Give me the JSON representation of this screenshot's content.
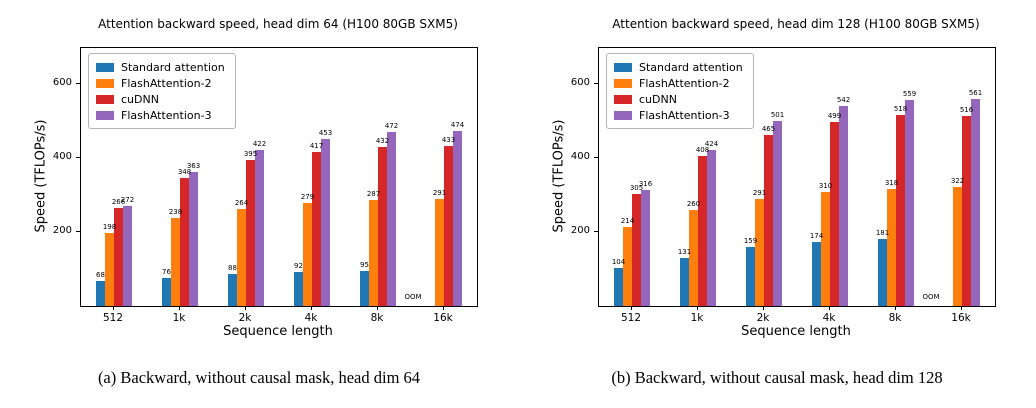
{
  "chart_data": [
    {
      "type": "bar",
      "title": "Attention backward speed, head dim 64 (H100 80GB SXM5)",
      "xlabel": "Sequence length",
      "ylabel": "Speed (TFLOPs/s)",
      "categories": [
        "512",
        "1k",
        "2k",
        "4k",
        "8k",
        "16k"
      ],
      "yticks": [
        200,
        400,
        600
      ],
      "ylim": [
        0,
        700
      ],
      "grid": false,
      "legend_position": "upper left",
      "oom_text": "OOM",
      "series": [
        {
          "name": "Standard attention",
          "color": "#1f77b4",
          "values": [
            68,
            76,
            88,
            92,
            95,
            null
          ]
        },
        {
          "name": "FlashAttention-2",
          "color": "#ff7f0e",
          "values": [
            198,
            238,
            264,
            279,
            287,
            291
          ]
        },
        {
          "name": "cuDNN",
          "color": "#d62728",
          "values": [
            266,
            348,
            395,
            417,
            432,
            433
          ]
        },
        {
          "name": "FlashAttention-3",
          "color": "#9467bd",
          "values": [
            272,
            363,
            422,
            453,
            472,
            474
          ]
        }
      ],
      "caption": "(a) Backward, without causal mask, head dim 64"
    },
    {
      "type": "bar",
      "title": "Attention backward speed, head dim 128 (H100 80GB SXM5)",
      "xlabel": "Sequence length",
      "ylabel": "Speed (TFLOPs/s)",
      "categories": [
        "512",
        "1k",
        "2k",
        "4k",
        "8k",
        "16k"
      ],
      "yticks": [
        200,
        400,
        600
      ],
      "ylim": [
        0,
        700
      ],
      "grid": false,
      "legend_position": "upper left",
      "oom_text": "OOM",
      "series": [
        {
          "name": "Standard attention",
          "color": "#1f77b4",
          "values": [
            104,
            131,
            159,
            174,
            181,
            null
          ]
        },
        {
          "name": "FlashAttention-2",
          "color": "#ff7f0e",
          "values": [
            214,
            260,
            291,
            310,
            318,
            322
          ]
        },
        {
          "name": "cuDNN",
          "color": "#d62728",
          "values": [
            305,
            408,
            465,
            499,
            518,
            516
          ]
        },
        {
          "name": "FlashAttention-3",
          "color": "#9467bd",
          "values": [
            316,
            424,
            501,
            542,
            559,
            561
          ]
        }
      ],
      "caption": "(b) Backward, without causal mask, head dim 128"
    }
  ]
}
